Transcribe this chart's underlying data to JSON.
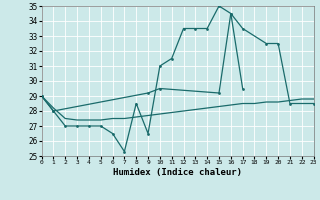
{
  "xlabel": "Humidex (Indice chaleur)",
  "xlim": [
    0,
    23
  ],
  "ylim": [
    25,
    35
  ],
  "yticks": [
    25,
    26,
    27,
    28,
    29,
    30,
    31,
    32,
    33,
    34,
    35
  ],
  "xticks": [
    0,
    1,
    2,
    3,
    4,
    5,
    6,
    7,
    8,
    9,
    10,
    11,
    12,
    13,
    14,
    15,
    16,
    17,
    18,
    19,
    20,
    21,
    22,
    23
  ],
  "bg_color": "#cce9e9",
  "line_color": "#1a6b6b",
  "grid_color": "#ffffff",
  "line1_x": [
    0,
    1,
    2,
    3,
    4,
    5,
    6,
    7,
    8,
    9,
    10,
    11,
    12,
    13,
    14,
    15,
    16,
    17
  ],
  "line1_y": [
    29,
    28,
    27,
    27,
    27,
    27,
    26.5,
    25.3,
    28.5,
    26.5,
    31.0,
    31.5,
    33.5,
    33.5,
    33.5,
    35.0,
    34.5,
    29.5
  ],
  "line2_x": [
    0,
    1,
    2,
    3,
    4,
    5,
    6,
    7,
    8,
    9,
    10,
    11,
    12,
    13,
    14,
    15,
    16,
    17,
    18,
    19,
    20,
    21,
    22,
    23
  ],
  "line2_y": [
    29.0,
    28.2,
    27.5,
    27.4,
    27.4,
    27.4,
    27.5,
    27.5,
    27.6,
    27.7,
    27.8,
    27.9,
    28.0,
    28.1,
    28.2,
    28.3,
    28.4,
    28.5,
    28.5,
    28.6,
    28.6,
    28.7,
    28.8,
    28.8
  ],
  "line3_x": [
    0,
    1,
    9,
    10,
    15,
    16,
    17,
    19,
    20,
    21,
    23
  ],
  "line3_y": [
    29,
    28,
    29.2,
    29.5,
    29.2,
    34.5,
    33.5,
    32.5,
    32.5,
    28.5,
    28.5
  ]
}
